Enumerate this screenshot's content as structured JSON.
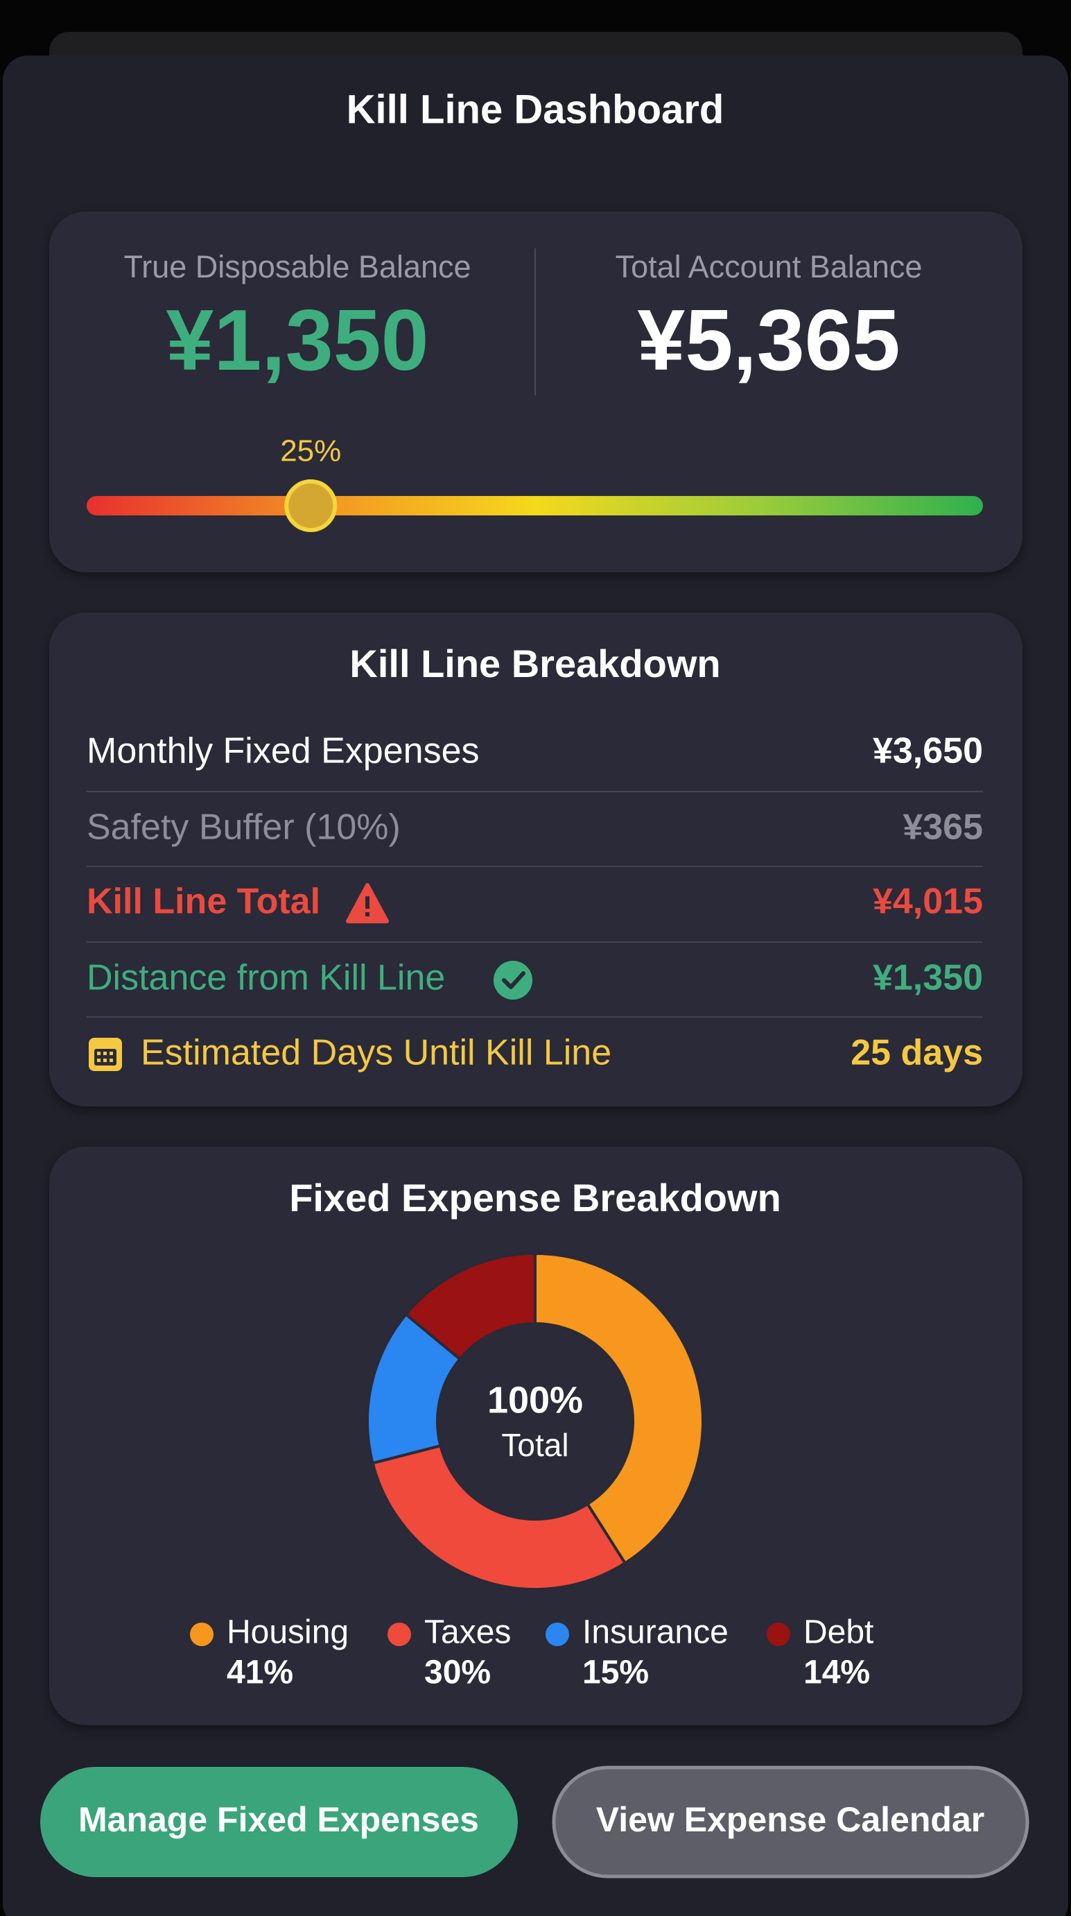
{
  "header": {
    "title": "Kill Line Dashboard"
  },
  "balances": {
    "disposable": {
      "label": "True Disposable Balance",
      "value": "¥1,350"
    },
    "total": {
      "label": "Total Account Balance",
      "value": "¥5,365"
    }
  },
  "gauge": {
    "value": 25,
    "label": "25%",
    "lim": [
      0,
      100
    ]
  },
  "breakdown": {
    "title": "Kill Line Breakdown",
    "rows": [
      {
        "label": "Monthly Fixed Expenses",
        "value": "¥3,650"
      },
      {
        "label": "Safety Buffer (10%)",
        "value": "¥365"
      },
      {
        "label": "Kill Line Total",
        "value": "¥4,015"
      },
      {
        "label": "Distance from Kill Line",
        "value": "¥1,350"
      },
      {
        "label": "Estimated Days Until Kill Line",
        "value": "25 days"
      }
    ]
  },
  "chart_data": {
    "type": "pie",
    "donut": true,
    "title": "Fixed Expense Breakdown",
    "categories": [
      "Housing",
      "Taxes",
      "Insurance",
      "Debt"
    ],
    "values": [
      41,
      30,
      15,
      14
    ],
    "value_labels": [
      "41%",
      "30%",
      "15%",
      "14%"
    ],
    "colors": [
      "#f7971e",
      "#ef4a3c",
      "#2a86f0",
      "#9a1212"
    ],
    "center_value": "100%",
    "center_label": "Total"
  },
  "buttons": {
    "manage": "Manage Fixed Expenses",
    "calendar": "View Expense Calendar"
  }
}
